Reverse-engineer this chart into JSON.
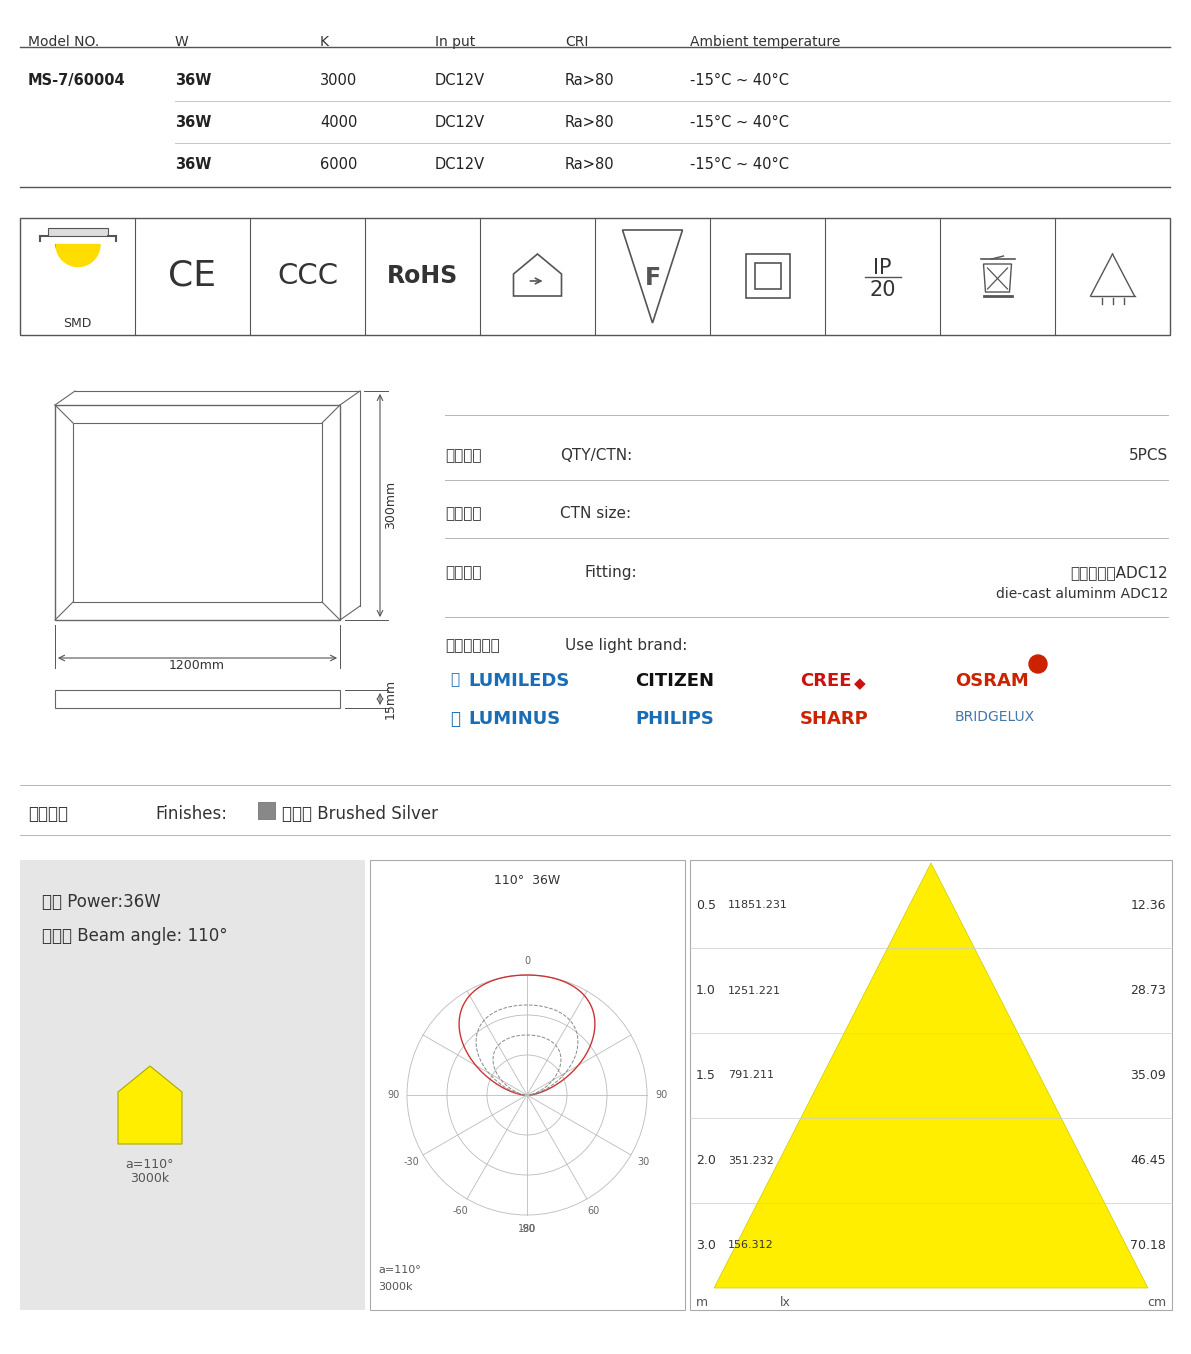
{
  "bg_color": "#ffffff",
  "table_header": [
    "Model NO.",
    "W",
    "K",
    "In put",
    "CRI",
    "Ambient temperature"
  ],
  "table_rows": [
    [
      "MS-7/60004",
      "36W",
      "3000",
      "DC12V",
      "Ra>80",
      "-15°C ~ 40°C"
    ],
    [
      "",
      "36W",
      "4000",
      "DC12V",
      "Ra>80",
      "-15°C ~ 40°C"
    ],
    [
      "",
      "36W",
      "6000",
      "DC12V",
      "Ra>80",
      "-15°C ~ 40°C"
    ]
  ],
  "col_positions": [
    28,
    175,
    320,
    435,
    565,
    690
  ],
  "dim_width": "1200mm",
  "dim_height": "300mm",
  "dim_thickness": "15mm",
  "box_qty_label": "装筱数量",
  "box_qty_en": "QTY/CTN:",
  "box_qty_val": "5PCS",
  "box_size_label": "外筱尺寸",
  "box_size_en": "CTN size:",
  "fitting_label": "灯具材质",
  "fitting_en": "Fitting:",
  "fitting_val_cn": "压铸铝合金ADC12",
  "fitting_val_en": "die-cast aluminm ADC12",
  "brand_label": "使用光源品牌",
  "brand_en": "Use light brand:",
  "finish_label": "外观颜色",
  "finish_en": "Finishes:",
  "finish_val": "拉丝銀 Brushed Silver",
  "power_label": "功率 Power:36W",
  "beam_label": "光束角 Beam angle: 110°",
  "polar_title": "110°  36W",
  "polar_label_line1": "a=110°",
  "polar_label_line2": "3000k",
  "illum_distances": [
    0.5,
    1.0,
    1.5,
    2.0,
    3.0
  ],
  "illum_lux": [
    11851.231,
    1251.221,
    791.211,
    351.232,
    156.312
  ],
  "illum_cm": [
    12.36,
    28.73,
    35.09,
    46.45,
    70.18
  ]
}
